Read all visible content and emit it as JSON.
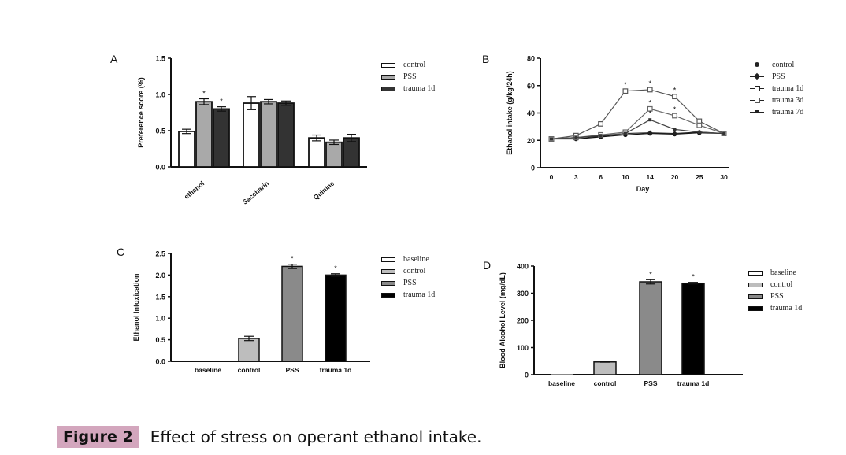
{
  "caption": {
    "label": "Figure 2",
    "text": "Effect of stress on operant ethanol intake."
  },
  "chart_data": [
    {
      "panel": "A",
      "type": "bar",
      "title": "",
      "xlabel": "",
      "ylabel": "Preference score (%)",
      "ylim": [
        0,
        1.5
      ],
      "yticks": [
        "0.0",
        "0.5",
        "1.0",
        "1.5"
      ],
      "categories": [
        "ethanol",
        "Saccharin",
        "Quinine"
      ],
      "series": [
        {
          "name": "control",
          "values": [
            0.49,
            0.88,
            0.4
          ],
          "errors": [
            0.03,
            0.09,
            0.04
          ],
          "color": "#ffffff"
        },
        {
          "name": "PSS",
          "values": [
            0.9,
            0.9,
            0.34
          ],
          "errors": [
            0.04,
            0.03,
            0.03
          ],
          "color": "#a9a9a9"
        },
        {
          "name": "trauma 1d",
          "values": [
            0.8,
            0.88,
            0.4
          ],
          "errors": [
            0.03,
            0.03,
            0.05
          ],
          "color": "#333333"
        }
      ],
      "significance": [
        [
          false,
          true,
          true
        ],
        [
          false,
          false,
          false
        ],
        [
          false,
          false,
          false
        ]
      ],
      "legend": "right"
    },
    {
      "panel": "B",
      "type": "line",
      "title": "",
      "xlabel": "Day",
      "ylabel": "Ethanol intake (g/kg/24h)",
      "ylim": [
        0,
        80
      ],
      "yticks": [
        "0",
        "20",
        "40",
        "60",
        "80"
      ],
      "x": [
        "0",
        "3",
        "6",
        "10",
        "14",
        "20",
        "25",
        "30"
      ],
      "series": [
        {
          "name": "control",
          "values": [
            21,
            21,
            22.5,
            24,
            25,
            24.5,
            25.5,
            25
          ],
          "marker": "filled-circle"
        },
        {
          "name": "PSS",
          "values": [
            21,
            22,
            23,
            25,
            25.5,
            25,
            26,
            25
          ],
          "marker": "filled-diamond"
        },
        {
          "name": "trauma 1d",
          "values": [
            21,
            23.5,
            32,
            56,
            57,
            52,
            34,
            25
          ],
          "marker": "open-square"
        },
        {
          "name": "trauma 3d",
          "values": [
            21,
            22,
            24,
            26,
            43,
            38,
            31,
            25
          ],
          "marker": "open-square"
        },
        {
          "name": "trauma 7d",
          "values": [
            21,
            22,
            23.5,
            25,
            35,
            28,
            26,
            25
          ],
          "marker": "filled-square"
        }
      ],
      "annotations": "* above trauma points at days 10, 14, 20",
      "legend": "right"
    },
    {
      "panel": "C",
      "type": "bar",
      "title": "",
      "xlabel": "",
      "ylabel": "Ethanol Intoxication",
      "ylim": [
        0,
        2.5
      ],
      "yticks": [
        "0.0",
        "0.5",
        "1.0",
        "1.5",
        "2.0",
        "2.5"
      ],
      "categories": [
        "baseline",
        "control",
        "PSS",
        "trauma 1d"
      ],
      "values": [
        0,
        0.53,
        2.2,
        2.0
      ],
      "errors": [
        0,
        0.05,
        0.05,
        0.03
      ],
      "colors": [
        "#ffffff",
        "#bdbdbd",
        "#8a8a8a",
        "#000000"
      ],
      "significance": [
        false,
        false,
        true,
        true
      ],
      "legend_entries": [
        "baseline",
        "control",
        "PSS",
        "trauma 1d"
      ],
      "legend": "right"
    },
    {
      "panel": "D",
      "type": "bar",
      "title": "",
      "xlabel": "",
      "ylabel": "Blood Alcohol Level (mg/dL)",
      "ylim": [
        0,
        400
      ],
      "yticks": [
        "0",
        "100",
        "200",
        "300",
        "400"
      ],
      "categories": [
        "baseline",
        "control",
        "PSS",
        "trauma 1d"
      ],
      "values": [
        0,
        47,
        342,
        337
      ],
      "errors": [
        0,
        1,
        8,
        3
      ],
      "colors": [
        "#ffffff",
        "#bdbdbd",
        "#8a8a8a",
        "#000000"
      ],
      "significance": [
        false,
        false,
        true,
        true
      ],
      "legend_entries": [
        "baseline",
        "control",
        "PSS",
        "trauma 1d"
      ],
      "legend": "right"
    }
  ]
}
